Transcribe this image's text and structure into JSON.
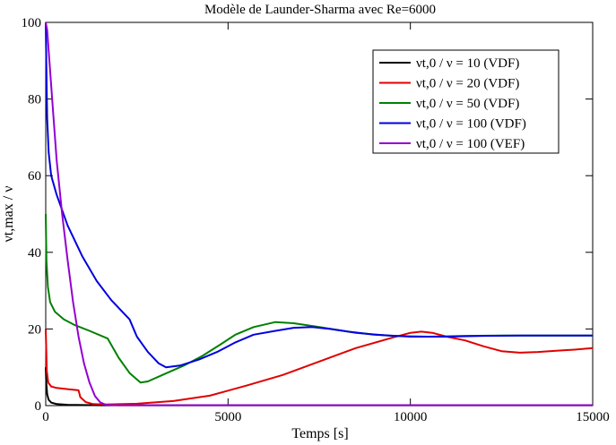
{
  "chart_data": {
    "type": "line",
    "title": "Modèle de Launder-Sharma avec Re=6000",
    "xlabel": "Temps [s]",
    "ylabel": "νt,max / ν",
    "xlim": [
      0,
      15000
    ],
    "ylim": [
      0,
      100
    ],
    "x_ticks": [
      0,
      5000,
      10000,
      15000
    ],
    "y_ticks": [
      0,
      20,
      40,
      60,
      80,
      100
    ],
    "grid": false,
    "legend_position": "top-right",
    "series": [
      {
        "name": "νt,0 / ν = 10 (VDF)",
        "color": "#000000",
        "points": [
          [
            0,
            10
          ],
          [
            15,
            6
          ],
          [
            40,
            3
          ],
          [
            80,
            1.5
          ],
          [
            150,
            0.8
          ],
          [
            300,
            0.4
          ],
          [
            600,
            0.2
          ],
          [
            1500,
            0.1
          ],
          [
            5000,
            0.1
          ],
          [
            15000,
            0.1
          ]
        ]
      },
      {
        "name": "νt,0 / ν = 20 (VDF)",
        "color": "#e00000",
        "points": [
          [
            0,
            20
          ],
          [
            30,
            9
          ],
          [
            70,
            6
          ],
          [
            150,
            5
          ],
          [
            300,
            4.6
          ],
          [
            600,
            4.3
          ],
          [
            900,
            4.0
          ],
          [
            950,
            2.2
          ],
          [
            1100,
            0.9
          ],
          [
            1300,
            0.4
          ],
          [
            1600,
            0.3
          ],
          [
            2500,
            0.5
          ],
          [
            3500,
            1.2
          ],
          [
            4500,
            2.6
          ],
          [
            5500,
            5.2
          ],
          [
            6500,
            8.0
          ],
          [
            7500,
            11.5
          ],
          [
            8500,
            15.0
          ],
          [
            9500,
            17.7
          ],
          [
            10000,
            19.0
          ],
          [
            10300,
            19.3
          ],
          [
            10600,
            19.0
          ],
          [
            11000,
            18.0
          ],
          [
            11500,
            17.0
          ],
          [
            12000,
            15.5
          ],
          [
            12500,
            14.2
          ],
          [
            13000,
            13.8
          ],
          [
            13500,
            14.0
          ],
          [
            14000,
            14.3
          ],
          [
            14500,
            14.6
          ],
          [
            15000,
            15.0
          ]
        ]
      },
      {
        "name": "νt,0 / ν = 50 (VDF)",
        "color": "#008000",
        "points": [
          [
            0,
            50
          ],
          [
            20,
            38
          ],
          [
            60,
            31
          ],
          [
            120,
            27
          ],
          [
            250,
            24.5
          ],
          [
            500,
            22.5
          ],
          [
            800,
            21.0
          ],
          [
            1200,
            19.5
          ],
          [
            1700,
            17.5
          ],
          [
            2000,
            12.5
          ],
          [
            2300,
            8.5
          ],
          [
            2600,
            6.0
          ],
          [
            2800,
            6.3
          ],
          [
            3200,
            8.0
          ],
          [
            3800,
            10.5
          ],
          [
            4300,
            13.0
          ],
          [
            4800,
            16.0
          ],
          [
            5200,
            18.5
          ],
          [
            5700,
            20.5
          ],
          [
            6300,
            21.8
          ],
          [
            6800,
            21.5
          ],
          [
            7500,
            20.5
          ],
          [
            8500,
            19.0
          ],
          [
            9500,
            18.2
          ],
          [
            10500,
            18.0
          ],
          [
            11500,
            18.2
          ],
          [
            12500,
            18.3
          ],
          [
            15000,
            18.3
          ]
        ]
      },
      {
        "name": "νt,0 / ν = 100 (VDF)",
        "color": "#0000e0",
        "points": [
          [
            0,
            100
          ],
          [
            15,
            90
          ],
          [
            40,
            75
          ],
          [
            80,
            66
          ],
          [
            150,
            60
          ],
          [
            300,
            55
          ],
          [
            600,
            47
          ],
          [
            1000,
            39
          ],
          [
            1400,
            32.5
          ],
          [
            1800,
            27.5
          ],
          [
            2300,
            22.5
          ],
          [
            2500,
            18
          ],
          [
            2800,
            14
          ],
          [
            3100,
            11
          ],
          [
            3300,
            10
          ],
          [
            3700,
            10.5
          ],
          [
            4200,
            12
          ],
          [
            4700,
            14
          ],
          [
            5200,
            16.5
          ],
          [
            5700,
            18.5
          ],
          [
            6300,
            19.5
          ],
          [
            6800,
            20.3
          ],
          [
            7300,
            20.5
          ],
          [
            7800,
            20.0
          ],
          [
            8300,
            19.3
          ],
          [
            9000,
            18.5
          ],
          [
            10000,
            18.0
          ],
          [
            11000,
            18.0
          ],
          [
            12000,
            18.2
          ],
          [
            13000,
            18.3
          ],
          [
            15000,
            18.3
          ]
        ]
      },
      {
        "name": "νt,0 / ν = 100 (VEF)",
        "color": "#9400d3",
        "points": [
          [
            0,
            100
          ],
          [
            40,
            98
          ],
          [
            100,
            90
          ],
          [
            200,
            77
          ],
          [
            300,
            64
          ],
          [
            450,
            50
          ],
          [
            600,
            38
          ],
          [
            750,
            27
          ],
          [
            900,
            18
          ],
          [
            1050,
            11
          ],
          [
            1200,
            6
          ],
          [
            1350,
            2.5
          ],
          [
            1500,
            0.8
          ],
          [
            1650,
            0.2
          ],
          [
            2000,
            0.1
          ],
          [
            15000,
            0.1
          ]
        ]
      }
    ]
  }
}
